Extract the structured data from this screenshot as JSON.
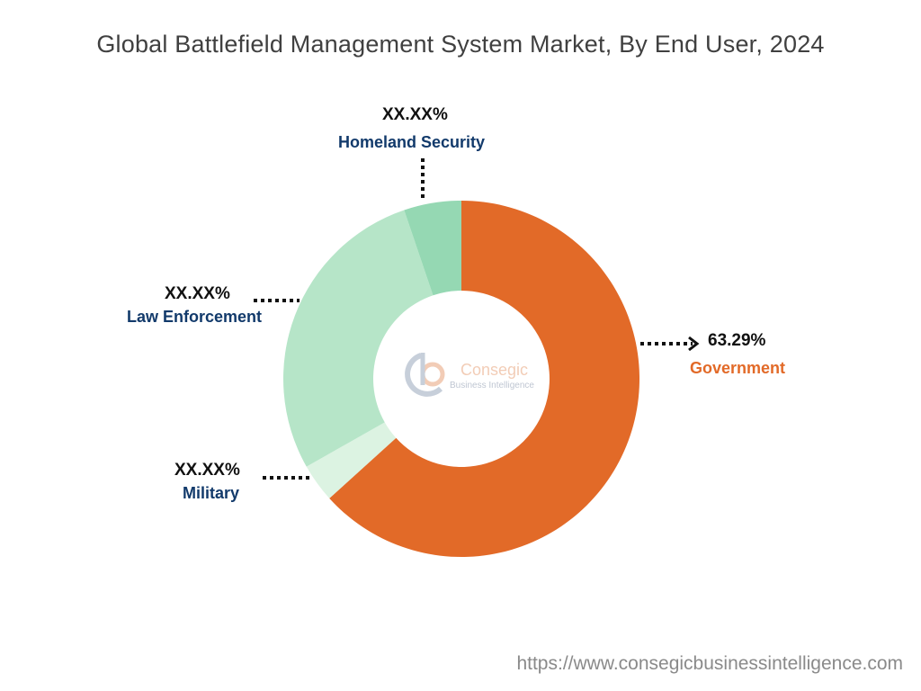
{
  "chart_data": {
    "type": "pie",
    "donut": true,
    "title": "Global Battlefield Management System Market, By End User, 2024",
    "slices": [
      {
        "name": "Government",
        "value": 63.29,
        "label": "63.29%",
        "color": "#e26a28",
        "label_color": "#e26a28"
      },
      {
        "name": "Military",
        "value": 3.5,
        "label": "XX.XX%",
        "color": "#dcf3e2",
        "label_color": "#123a6b"
      },
      {
        "name": "Law Enforcement",
        "value": 28.0,
        "label": "XX.XX%",
        "color": "#b6e5c8",
        "label_color": "#123a6b"
      },
      {
        "name": "Homeland Security",
        "value": 5.21,
        "label": "XX.XX%",
        "color": "#95d8b3",
        "label_color": "#123a6b"
      }
    ]
  },
  "watermark": {
    "name": "Consegic",
    "tagline": "Business Intelligence"
  },
  "footer": {
    "url": "https://www.consegicbusinessintelligence.com"
  }
}
